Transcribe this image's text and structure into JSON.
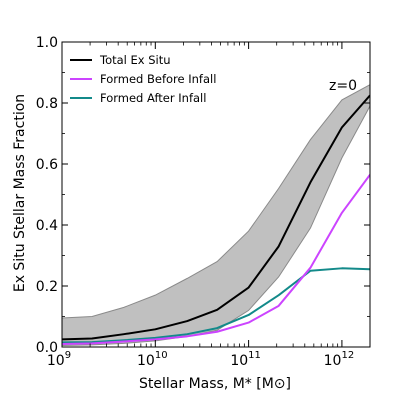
{
  "chart_data": {
    "type": "line",
    "title": "",
    "xlabel": "Stellar Mass, M* [M⊙]",
    "ylabel": "Ex Situ Stellar Mass Fraction",
    "x_scale": "log",
    "xlim": [
      1000000000.0,
      2000000000000.0
    ],
    "ylim": [
      0,
      1.0
    ],
    "x_ticks": [
      {
        "value": 1000000000.0,
        "base": "10",
        "exp": "9"
      },
      {
        "value": 10000000000.0,
        "base": "10",
        "exp": "10"
      },
      {
        "value": 100000000000.0,
        "base": "10",
        "exp": "11"
      },
      {
        "value": 1000000000000.0,
        "base": "10",
        "exp": "12"
      }
    ],
    "y_ticks": [
      {
        "value": 0.0,
        "label": "0.0"
      },
      {
        "value": 0.2,
        "label": "0.2"
      },
      {
        "value": 0.4,
        "label": "0.4"
      },
      {
        "value": 0.6,
        "label": "0.6"
      },
      {
        "value": 0.8,
        "label": "0.8"
      },
      {
        "value": 1.0,
        "label": "1.0"
      }
    ],
    "annotation": "z=0",
    "legend_position": "top-left",
    "band": {
      "color": "#c0c0c0",
      "edge_color": "#8a8a8a",
      "x": [
        1000000000.0,
        2100000000.0,
        4600000000.0,
        10000000000.0,
        22000000000.0,
        46000000000.0,
        100000000000.0,
        210000000000.0,
        460000000000.0,
        1000000000000.0,
        2000000000000.0
      ],
      "lower": [
        0.005,
        0.007,
        0.012,
        0.02,
        0.035,
        0.055,
        0.12,
        0.23,
        0.39,
        0.62,
        0.79
      ],
      "upper": [
        0.095,
        0.1,
        0.13,
        0.17,
        0.225,
        0.28,
        0.38,
        0.52,
        0.68,
        0.81,
        0.86
      ]
    },
    "series": [
      {
        "name": "Total Ex Situ",
        "color": "#000000",
        "x": [
          1000000000.0,
          2100000000.0,
          4600000000.0,
          10000000000.0,
          22000000000.0,
          46000000000.0,
          100000000000.0,
          210000000000.0,
          460000000000.0,
          1000000000000.0,
          2000000000000.0
        ],
        "values": [
          0.025,
          0.028,
          0.042,
          0.058,
          0.085,
          0.122,
          0.195,
          0.33,
          0.54,
          0.72,
          0.825
        ]
      },
      {
        "name": "Formed Before Infall",
        "color": "#cc44ff",
        "x": [
          1000000000.0,
          2100000000.0,
          4600000000.0,
          10000000000.0,
          22000000000.0,
          46000000000.0,
          100000000000.0,
          210000000000.0,
          460000000000.0,
          1000000000000.0,
          2000000000000.0
        ],
        "values": [
          0.01,
          0.012,
          0.018,
          0.025,
          0.035,
          0.05,
          0.08,
          0.135,
          0.26,
          0.44,
          0.565
        ]
      },
      {
        "name": "Formed After Infall",
        "color": "#138a8a",
        "x": [
          1000000000.0,
          2100000000.0,
          4600000000.0,
          10000000000.0,
          22000000000.0,
          46000000000.0,
          100000000000.0,
          210000000000.0,
          460000000000.0,
          1000000000000.0,
          2000000000000.0
        ],
        "values": [
          0.015,
          0.016,
          0.022,
          0.03,
          0.042,
          0.062,
          0.105,
          0.17,
          0.25,
          0.258,
          0.255
        ]
      }
    ]
  }
}
